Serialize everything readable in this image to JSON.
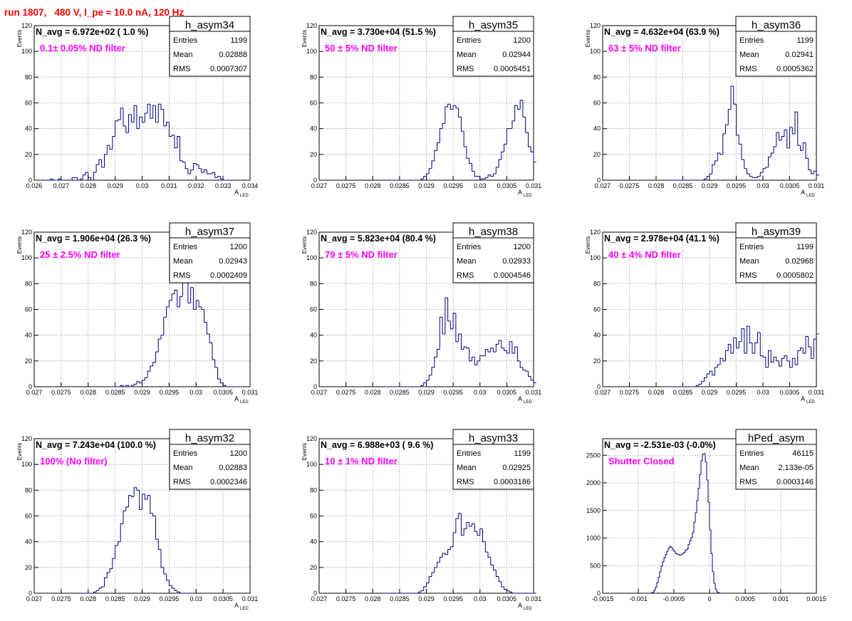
{
  "run_title": "run 1807,   480 V, I_pe ≈ 10.0 nA, 120 Hz",
  "colors": {
    "hist": "#000080",
    "title": "#ff0000",
    "annotation": "#ff00ff",
    "grid": "#999999"
  },
  "stat_labels": {
    "entries": "Entries",
    "mean": "Mean",
    "rms": "RMS"
  },
  "chart_data": [
    {
      "type": "bar",
      "name": "h_asym34",
      "title": "h_asym34",
      "stat_entries": "1199",
      "stat_mean": "0.02888",
      "stat_rms": "0.0007307",
      "navg": "N_avg = 6.972e+02 ( 1.0 %)",
      "note": "0.1± 0.05% ND filter",
      "xlabel_main": "A",
      "xlabel_sub": "LED",
      "ylabel": "Events",
      "xlim": [
        0.026,
        0.034
      ],
      "ylim": [
        0,
        120
      ],
      "grid": true,
      "xticks": [
        0.026,
        0.027,
        0.028,
        0.029,
        0.03,
        0.031,
        0.032,
        0.033,
        0.034
      ],
      "xticklabels": [
        "0.026",
        "0.027",
        "0.028",
        "0.029",
        "0.03",
        "0.031",
        "0.032",
        "0.033",
        "0.034"
      ],
      "yticks": [
        0,
        20,
        40,
        60,
        80,
        100,
        120
      ],
      "yticklabels": [
        "0",
        "20",
        "40",
        "60",
        "80",
        "100",
        "120"
      ],
      "bin_start": 0.0262,
      "bin_width": 0.0001,
      "values": [
        0,
        0,
        0,
        0,
        1,
        0,
        0,
        1,
        0,
        0,
        0,
        0,
        2,
        2,
        0,
        1,
        4,
        6,
        2,
        0,
        6,
        12,
        16,
        10,
        20,
        27,
        24,
        34,
        46,
        47,
        56,
        42,
        37,
        51,
        45,
        58,
        40,
        49,
        45,
        52,
        59,
        48,
        58,
        45,
        59,
        55,
        42,
        45,
        34,
        35,
        25,
        34,
        15,
        14,
        9,
        5,
        8,
        13,
        12,
        9,
        6,
        8,
        5,
        5,
        6,
        2,
        3,
        1,
        0,
        0,
        0
      ]
    },
    {
      "type": "bar",
      "name": "h_asym35",
      "title": "h_asym35",
      "stat_entries": "1200",
      "stat_mean": "0.02944",
      "stat_rms": "0.0005451",
      "navg": "N_avg = 3.730e+04 (51.5 %)",
      "note": "50 ± 5% ND filter",
      "xlabel_main": "A",
      "xlabel_sub": "LED",
      "ylabel": "Events",
      "xlim": [
        0.027,
        0.031
      ],
      "ylim": [
        0,
        120
      ],
      "grid": true,
      "xticks": [
        0.027,
        0.0275,
        0.028,
        0.0285,
        0.029,
        0.0295,
        0.03,
        0.0305,
        0.031
      ],
      "xticklabels": [
        "0.027",
        "0.0275",
        "0.028",
        "0.0285",
        "0.029",
        "0.0295",
        "0.03",
        "0.0305",
        "0.031"
      ],
      "yticks": [
        0,
        20,
        40,
        60,
        80,
        100,
        120
      ],
      "yticklabels": [
        "0",
        "20",
        "40",
        "60",
        "80",
        "100",
        "120"
      ],
      "bin_start": 0.0282,
      "bin_width": 5e-05,
      "values": [
        0,
        0,
        0,
        0,
        0,
        0,
        0,
        0,
        0,
        0,
        0,
        0,
        0,
        0,
        1,
        3,
        5,
        9,
        15,
        23,
        29,
        40,
        44,
        57,
        59,
        55,
        58,
        56,
        49,
        38,
        26,
        17,
        13,
        7,
        3,
        3,
        1,
        1,
        2,
        4,
        3,
        5,
        10,
        16,
        22,
        28,
        40,
        40,
        46,
        58,
        55,
        62,
        49,
        37,
        26,
        22,
        14,
        8,
        5,
        3,
        2,
        2,
        1,
        0,
        0
      ]
    },
    {
      "type": "bar",
      "name": "h_asym36",
      "title": "h_asym36",
      "stat_entries": "1199",
      "stat_mean": "0.02941",
      "stat_rms": "0.0005362",
      "navg": "N_avg = 4.632e+04 (63.9 %)",
      "note": "63 ± 5% ND filter",
      "xlabel_main": "A",
      "xlabel_sub": "LED",
      "ylabel": "Events",
      "xlim": [
        0.027,
        0.031
      ],
      "ylim": [
        0,
        120
      ],
      "grid": true,
      "xticks": [
        0.027,
        0.0275,
        0.028,
        0.0285,
        0.029,
        0.0295,
        0.03,
        0.0305,
        0.031
      ],
      "xticklabels": [
        "0.027",
        "0.0275",
        "0.028",
        "0.0285",
        "0.029",
        "0.0295",
        "0.03",
        "0.0305",
        "0.031"
      ],
      "yticks": [
        0,
        20,
        40,
        60,
        80,
        100,
        120
      ],
      "yticklabels": [
        "0",
        "20",
        "40",
        "60",
        "80",
        "100",
        "120"
      ],
      "bin_start": 0.0282,
      "bin_width": 5e-05,
      "values": [
        0,
        0,
        0,
        0,
        0,
        0,
        0,
        0,
        0,
        0,
        0,
        0,
        0,
        0,
        1,
        3,
        5,
        12,
        15,
        21,
        20,
        36,
        43,
        55,
        73,
        59,
        35,
        28,
        16,
        9,
        5,
        3,
        2,
        2,
        3,
        6,
        9,
        10,
        18,
        21,
        26,
        37,
        31,
        34,
        39,
        25,
        41,
        36,
        53,
        27,
        23,
        29,
        17,
        8,
        5,
        7,
        4,
        1,
        0,
        0,
        0,
        0,
        0,
        0,
        0
      ]
    },
    {
      "type": "bar",
      "name": "h_asym37",
      "title": "h_asym37",
      "stat_entries": "1200",
      "stat_mean": "0.02943",
      "stat_rms": "0.0002409",
      "navg": "N_avg = 1.906e+04 (26.3 %)",
      "note": "25 ± 2.5% ND filter",
      "xlabel_main": "A",
      "xlabel_sub": "LED",
      "ylabel": "Events",
      "xlim": [
        0.027,
        0.031
      ],
      "ylim": [
        0,
        120
      ],
      "grid": true,
      "xticks": [
        0.027,
        0.0275,
        0.028,
        0.0285,
        0.029,
        0.0295,
        0.03,
        0.0305,
        0.031
      ],
      "xticklabels": [
        "0.027",
        "0.0275",
        "0.028",
        "0.0285",
        "0.029",
        "0.0295",
        "0.03",
        "0.0305",
        "0.031"
      ],
      "yticks": [
        0,
        20,
        40,
        60,
        80,
        100,
        120
      ],
      "yticklabels": [
        "0",
        "20",
        "40",
        "60",
        "80",
        "100",
        "120"
      ],
      "bin_start": 0.0284,
      "bin_width": 5e-05,
      "values": [
        0,
        0,
        0,
        0,
        1,
        0,
        1,
        0,
        1,
        2,
        4,
        3,
        5,
        7,
        12,
        16,
        19,
        27,
        37,
        40,
        54,
        62,
        67,
        72,
        75,
        62,
        70,
        81,
        86,
        65,
        77,
        60,
        67,
        62,
        60,
        50,
        41,
        34,
        21,
        15,
        6,
        3,
        1,
        0,
        0,
        0,
        0,
        0,
        0
      ]
    },
    {
      "type": "bar",
      "name": "h_asym38",
      "title": "h_asym38",
      "stat_entries": "1200",
      "stat_mean": "0.02933",
      "stat_rms": "0.0004546",
      "navg": "N_avg = 5.823e+04 (80.4 %)",
      "note": "79 ± 5% ND filter",
      "xlabel_main": "A",
      "xlabel_sub": "LED",
      "ylabel": "Events",
      "xlim": [
        0.027,
        0.031
      ],
      "ylim": [
        0,
        120
      ],
      "grid": true,
      "xticks": [
        0.027,
        0.0275,
        0.028,
        0.0285,
        0.029,
        0.0295,
        0.03,
        0.0305,
        0.031
      ],
      "xticklabels": [
        "0.027",
        "0.0275",
        "0.028",
        "0.0285",
        "0.029",
        "0.0295",
        "0.03",
        "0.0305",
        "0.031"
      ],
      "yticks": [
        0,
        20,
        40,
        60,
        80,
        100,
        120
      ],
      "yticklabels": [
        "0",
        "20",
        "40",
        "60",
        "80",
        "100",
        "120"
      ],
      "bin_start": 0.0282,
      "bin_width": 5e-05,
      "values": [
        0,
        0,
        0,
        0,
        0,
        0,
        0,
        0,
        0,
        0,
        0,
        0,
        0,
        0,
        1,
        3,
        5,
        9,
        15,
        23,
        29,
        54,
        41,
        69,
        51,
        45,
        57,
        35,
        41,
        29,
        31,
        30,
        20,
        23,
        17,
        20,
        24,
        24,
        29,
        27,
        30,
        27,
        33,
        36,
        30,
        28,
        26,
        35,
        26,
        31,
        20,
        15,
        13,
        12,
        8,
        5,
        3,
        2,
        1,
        0,
        0,
        0,
        0,
        0,
        0
      ]
    },
    {
      "type": "bar",
      "name": "h_asym39",
      "title": "h_asym39",
      "stat_entries": "1199",
      "stat_mean": "0.02968",
      "stat_rms": "0.0005802",
      "navg": "N_avg = 2.978e+04 (41.1 %)",
      "note": "40 ± 4% ND filter",
      "xlabel_main": "A",
      "xlabel_sub": "LED",
      "ylabel": "Events",
      "xlim": [
        0.027,
        0.031
      ],
      "ylim": [
        0,
        120
      ],
      "grid": true,
      "xticks": [
        0.027,
        0.0275,
        0.028,
        0.0285,
        0.029,
        0.0295,
        0.03,
        0.0305,
        0.031
      ],
      "xticklabels": [
        "0.027",
        "0.0275",
        "0.028",
        "0.0285",
        "0.029",
        "0.0295",
        "0.03",
        "0.0305",
        "0.031"
      ],
      "yticks": [
        0,
        20,
        40,
        60,
        80,
        100,
        120
      ],
      "yticklabels": [
        "0",
        "20",
        "40",
        "60",
        "80",
        "100",
        "120"
      ],
      "bin_start": 0.0281,
      "bin_width": 5e-05,
      "values": [
        0,
        0,
        0,
        0,
        0,
        0,
        0,
        0,
        0,
        0,
        0,
        0,
        0,
        1,
        2,
        4,
        7,
        10,
        12,
        9,
        15,
        17,
        22,
        20,
        28,
        33,
        26,
        38,
        30,
        35,
        45,
        26,
        47,
        34,
        26,
        34,
        42,
        24,
        23,
        15,
        28,
        19,
        23,
        20,
        16,
        22,
        24,
        20,
        15,
        22,
        17,
        28,
        30,
        26,
        39,
        31,
        22,
        37,
        41,
        28,
        31,
        25,
        20,
        18,
        12,
        9,
        8,
        6,
        4,
        0,
        0
      ]
    },
    {
      "type": "bar",
      "name": "h_asym32",
      "title": "h_asym32",
      "stat_entries": "1200",
      "stat_mean": "0.02883",
      "stat_rms": "0.0002346",
      "navg": "N_avg = 7.243e+04 (100.0 %)",
      "note": "100% (No filter)",
      "xlabel_main": "A",
      "xlabel_sub": "LED",
      "ylabel": "Events",
      "xlim": [
        0.027,
        0.031
      ],
      "ylim": [
        0,
        120
      ],
      "grid": true,
      "xticks": [
        0.027,
        0.0275,
        0.028,
        0.0285,
        0.029,
        0.0295,
        0.03,
        0.0305,
        0.031
      ],
      "xticklabels": [
        "0.027",
        "0.0275",
        "0.028",
        "0.0285",
        "0.029",
        "0.0295",
        "0.03",
        "0.0305",
        "0.031"
      ],
      "yticks": [
        0,
        20,
        40,
        60,
        80,
        100,
        120
      ],
      "yticklabels": [
        "0",
        "20",
        "40",
        "60",
        "80",
        "100",
        "120"
      ],
      "bin_start": 0.0279,
      "bin_width": 5e-05,
      "values": [
        0,
        0,
        0,
        0,
        1,
        2,
        4,
        5,
        12,
        16,
        19,
        27,
        37,
        40,
        54,
        64,
        67,
        76,
        75,
        82,
        80,
        65,
        77,
        73,
        76,
        62,
        60,
        42,
        34,
        20,
        15,
        10,
        6,
        4,
        2,
        1,
        0,
        0,
        0,
        0
      ]
    },
    {
      "type": "bar",
      "name": "h_asym33",
      "title": "h_asym33",
      "stat_entries": "1199",
      "stat_mean": "0.02925",
      "stat_rms": "0.0003186",
      "navg": "N_avg = 6.988e+03 ( 9.6 %)",
      "note": "10 ± 1% ND filter",
      "xlabel_main": "A",
      "xlabel_sub": "LED",
      "ylabel": "Events",
      "xlim": [
        0.027,
        0.031
      ],
      "ylim": [
        0,
        120
      ],
      "grid": true,
      "xticks": [
        0.027,
        0.0275,
        0.028,
        0.0285,
        0.029,
        0.0295,
        0.03,
        0.0305,
        0.031
      ],
      "xticklabels": [
        "0.027",
        "0.0275",
        "0.028",
        "0.0285",
        "0.029",
        "0.0295",
        "0.03",
        "0.0305",
        "0.031"
      ],
      "yticks": [
        0,
        20,
        40,
        60,
        80,
        100,
        120
      ],
      "yticklabels": [
        "0",
        "20",
        "40",
        "60",
        "80",
        "100",
        "120"
      ],
      "bin_start": 0.0282,
      "bin_width": 5e-05,
      "values": [
        0,
        0,
        0,
        0,
        0,
        0,
        0,
        0,
        0,
        0,
        0,
        0,
        0,
        1,
        2,
        5,
        8,
        13,
        16,
        20,
        24,
        28,
        31,
        30,
        34,
        36,
        47,
        58,
        62,
        45,
        50,
        55,
        52,
        54,
        48,
        45,
        50,
        40,
        32,
        28,
        22,
        18,
        13,
        9,
        5,
        3,
        2,
        1,
        0,
        0,
        0,
        0,
        0,
        0,
        0,
        0,
        0,
        0,
        0,
        0,
        0
      ]
    },
    {
      "type": "bar",
      "name": "hPed_asym",
      "title": "hPed_asym",
      "stat_entries": "46115",
      "stat_mean": "2.133e-05",
      "stat_rms": "0.0003146",
      "navg": "N_avg = -2.531e-03 (-0.0%)",
      "note": "Shutter Closed",
      "xlabel_main": "",
      "xlabel_sub": "",
      "ylabel": "",
      "xlim": [
        -0.0015,
        0.0015
      ],
      "ylim": [
        0,
        2800
      ],
      "grid": true,
      "xticks": [
        -0.0015,
        -0.001,
        -0.0005,
        0,
        0.0005,
        0.001,
        0.0015
      ],
      "xticklabels": [
        "-0.0015",
        "-0.001",
        "-0.0005",
        "0",
        "0.0005",
        "0.001",
        "0.0015"
      ],
      "yticks": [
        0,
        500,
        1000,
        1500,
        2000,
        2500
      ],
      "yticklabels": [
        "0",
        "500",
        "1000",
        "1500",
        "2000",
        "2500"
      ],
      "bin_start": -0.00084,
      "bin_width": 2e-05,
      "values": [
        0,
        5,
        20,
        55,
        110,
        190,
        290,
        390,
        490,
        570,
        640,
        700,
        760,
        820,
        850,
        830,
        790,
        760,
        720,
        710,
        700,
        690,
        700,
        720,
        740,
        780,
        800,
        880,
        950,
        1010,
        1100,
        1280,
        1460,
        1680,
        1900,
        2150,
        2400,
        2520,
        2530,
        2380,
        2050,
        1650,
        1150,
        720,
        390,
        180,
        70,
        25,
        10,
        3,
        0
      ]
    }
  ]
}
